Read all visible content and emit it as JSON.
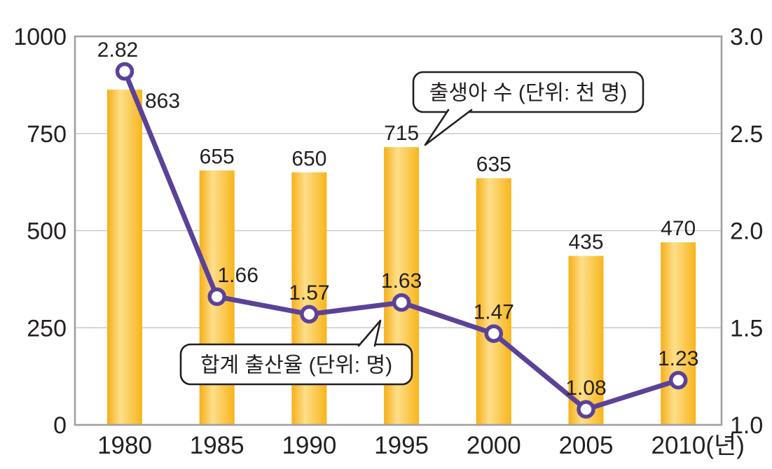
{
  "chart_data": {
    "type": "bar",
    "combo": "bar+line dual-axis",
    "categories": [
      "1980",
      "1985",
      "1990",
      "1995",
      "2000",
      "2005",
      "2010"
    ],
    "x_tick_labels": [
      "1980",
      "1985",
      "1990",
      "1995",
      "2000",
      "2005",
      "2010(년)"
    ],
    "series": [
      {
        "name": "출생아 수 (단위: 천 명)",
        "type": "bar",
        "axis": "left",
        "values": [
          863,
          655,
          650,
          715,
          635,
          435,
          470
        ],
        "labels": [
          "863",
          "655",
          "650",
          "715",
          "635",
          "435",
          "470"
        ]
      },
      {
        "name": "합계 출산율 (단위: 명)",
        "type": "line",
        "axis": "right",
        "values": [
          2.82,
          1.66,
          1.57,
          1.63,
          1.47,
          1.08,
          1.23
        ],
        "labels": [
          "2.82",
          "1.66",
          "1.57",
          "1.63",
          "1.47",
          "1.08",
          "1.23"
        ],
        "marker": "open-circle"
      }
    ],
    "left_axis": {
      "range": [
        0,
        1000
      ],
      "ticks": [
        0,
        250,
        500,
        750,
        1000
      ],
      "tick_labels": [
        "0",
        "250",
        "500",
        "750",
        "1000"
      ]
    },
    "right_axis": {
      "range": [
        1.0,
        3.0
      ],
      "ticks": [
        1.0,
        1.5,
        2.0,
        2.5,
        3.0
      ],
      "tick_labels": [
        "1.0",
        "1.5",
        "2.0",
        "2.5",
        "3.0"
      ]
    },
    "grid": true,
    "legend_position": "callout-bubbles",
    "annotations": [
      {
        "id": "births-callout",
        "text": "출생아 수 (단위: 천 명)",
        "points_to": "1995 bar"
      },
      {
        "id": "fertility-callout",
        "text": "합계 출산율 (단위: 명)",
        "points_to": "line segment near 1995"
      }
    ],
    "colors": {
      "bar_edge": "#F6AF19",
      "bar_highlight": "#FDDE8A",
      "bar_edge_right": "#F8B51B",
      "line": "#5B4298",
      "marker_fill": "#FFFFFF",
      "frame": "#A0A0A0",
      "gridline": "#C9C9C9",
      "text": "#231F20",
      "callout_border": "#231F20",
      "background": "#FFFFFF"
    }
  }
}
